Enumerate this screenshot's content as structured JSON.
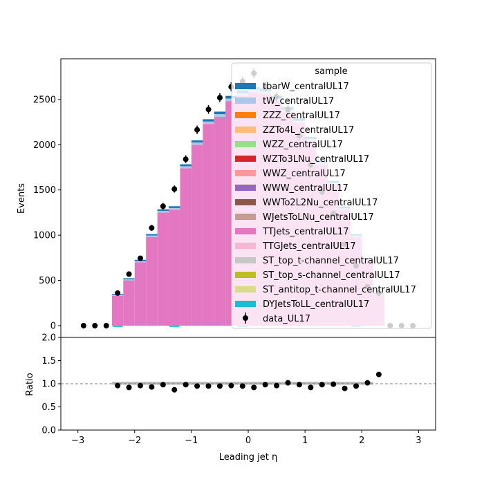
{
  "chart_data": [
    {
      "type": "bar",
      "subtype": "stacked-histogram-with-data-points",
      "ylabel": "Events",
      "xlim": [
        -3.3,
        3.3
      ],
      "ylim": [
        -130,
        2950
      ],
      "yticks": [
        0,
        500,
        1000,
        1500,
        2000,
        2500
      ],
      "legend": {
        "title": "sample",
        "placement": "top-right",
        "entries": [
          {
            "label": "tbarW_centralUL17",
            "color": "#1f77b4",
            "kind": "fill"
          },
          {
            "label": "tW_centralUL17",
            "color": "#aec7e8",
            "kind": "fill"
          },
          {
            "label": "ZZZ_centralUL17",
            "color": "#ff7f0e",
            "kind": "fill"
          },
          {
            "label": "ZZTo4L_centralUL17",
            "color": "#ffbb78",
            "kind": "fill"
          },
          {
            "label": "WZZ_centralUL17",
            "color": "#98df8a",
            "kind": "fill"
          },
          {
            "label": "WZTo3LNu_centralUL17",
            "color": "#d62728",
            "kind": "fill"
          },
          {
            "label": "WWZ_centralUL17",
            "color": "#ff9896",
            "kind": "fill"
          },
          {
            "label": "WWW_centralUL17",
            "color": "#9467bd",
            "kind": "fill"
          },
          {
            "label": "WWTo2L2Nu_centralUL17",
            "color": "#8c564b",
            "kind": "fill"
          },
          {
            "label": "WJetsToLNu_centralUL17",
            "color": "#c49c94",
            "kind": "fill"
          },
          {
            "label": "TTJets_centralUL17",
            "color": "#e377c2",
            "kind": "fill"
          },
          {
            "label": "TTGJets_centralUL17",
            "color": "#f7b6d2",
            "kind": "fill"
          },
          {
            "label": "ST_top_t-channel_centralUL17",
            "color": "#c7c7c7",
            "kind": "fill"
          },
          {
            "label": "ST_top_s-channel_centralUL17",
            "color": "#bcbd22",
            "kind": "fill"
          },
          {
            "label": "ST_antitop_t-channel_centralUL17",
            "color": "#dbdb8d",
            "kind": "fill"
          },
          {
            "label": "DYJetsToLL_centralUL17",
            "color": "#17becf",
            "kind": "fill"
          },
          {
            "label": "data_UL17",
            "color": "#000000",
            "kind": "marker"
          }
        ]
      },
      "bins": {
        "edges": [
          -2.4,
          -2.2,
          -2.0,
          -1.8,
          -1.6,
          -1.4,
          -1.2,
          -1.0,
          -0.8,
          -0.6,
          -0.4,
          -0.2,
          0.0,
          0.2,
          0.4,
          0.6,
          0.8,
          1.0,
          1.2,
          1.4,
          1.6,
          1.8,
          2.0,
          2.2,
          2.4
        ],
        "ttjets": [
          330,
          500,
          700,
          980,
          1250,
          1280,
          1740,
          2000,
          2230,
          2310,
          2480,
          2540,
          2580,
          2560,
          2480,
          2360,
          2240,
          2040,
          1780,
          1560,
          1280,
          980,
          720,
          340
        ],
        "tw": [
          10,
          12,
          14,
          16,
          18,
          20,
          22,
          24,
          26,
          28,
          30,
          30,
          30,
          30,
          30,
          28,
          26,
          24,
          22,
          20,
          18,
          16,
          14,
          10
        ],
        "tbarw": [
          10,
          12,
          14,
          16,
          18,
          20,
          22,
          24,
          26,
          28,
          30,
          30,
          30,
          30,
          30,
          28,
          26,
          24,
          22,
          20,
          18,
          16,
          14,
          10
        ],
        "dy": [
          -14,
          0,
          0,
          0,
          0,
          -14,
          0,
          0,
          0,
          0,
          0,
          -14,
          0,
          0,
          0,
          0,
          0,
          0,
          0,
          0,
          0,
          -14,
          0,
          0
        ]
      },
      "data_points": {
        "x": [
          -2.9,
          -2.7,
          -2.5,
          -2.3,
          -2.1,
          -1.9,
          -1.7,
          -1.5,
          -1.3,
          -1.1,
          -0.9,
          -0.7,
          -0.5,
          -0.3,
          -0.1,
          0.1,
          0.3,
          0.5,
          0.7,
          0.9,
          1.1,
          1.3,
          1.5,
          1.7,
          1.9,
          2.1,
          2.3,
          2.5,
          2.7,
          2.9
        ],
        "y": [
          0,
          0,
          0,
          360,
          570,
          745,
          1080,
          1320,
          1510,
          1840,
          2165,
          2390,
          2520,
          2640,
          2700,
          2790,
          2640,
          2530,
          2390,
          2100,
          1780,
          1480,
          1240,
          900,
          660,
          430,
          360,
          0,
          0,
          0
        ],
        "yerr": [
          0,
          0,
          0,
          19,
          24,
          27,
          33,
          36,
          39,
          43,
          47,
          49,
          50,
          51,
          52,
          53,
          51,
          50,
          49,
          46,
          42,
          38,
          35,
          30,
          26,
          21,
          19,
          0,
          0,
          0
        ]
      }
    },
    {
      "type": "scatter",
      "subtype": "ratio-panel",
      "xlabel": "Leading jet  η",
      "ylabel": "Ratio",
      "xlim": [
        -3.3,
        3.3
      ],
      "ylim": [
        0.0,
        2.0
      ],
      "yticks": [
        "0.0",
        "0.5",
        "1.0",
        "1.5",
        "2.0"
      ],
      "xticks": [
        -3,
        -2,
        -1,
        0,
        1,
        2,
        3
      ],
      "reference_line": 1.0,
      "uncertainty_band": {
        "x_range": [
          -2.4,
          2.2
        ],
        "low": 0.98,
        "high": 1.04
      },
      "points": {
        "x": [
          -2.3,
          -2.1,
          -1.9,
          -1.7,
          -1.5,
          -1.3,
          -1.1,
          -0.9,
          -0.7,
          -0.5,
          -0.3,
          -0.1,
          0.1,
          0.3,
          0.5,
          0.7,
          0.9,
          1.1,
          1.3,
          1.5,
          1.7,
          1.9,
          2.1,
          2.3
        ],
        "y": [
          0.96,
          0.92,
          0.96,
          0.93,
          0.98,
          0.87,
          0.98,
          0.95,
          0.95,
          0.95,
          0.96,
          0.95,
          0.92,
          0.98,
          0.96,
          1.02,
          0.98,
          0.92,
          0.98,
          0.99,
          0.9,
          0.95,
          1.02,
          1.2
        ]
      }
    }
  ]
}
